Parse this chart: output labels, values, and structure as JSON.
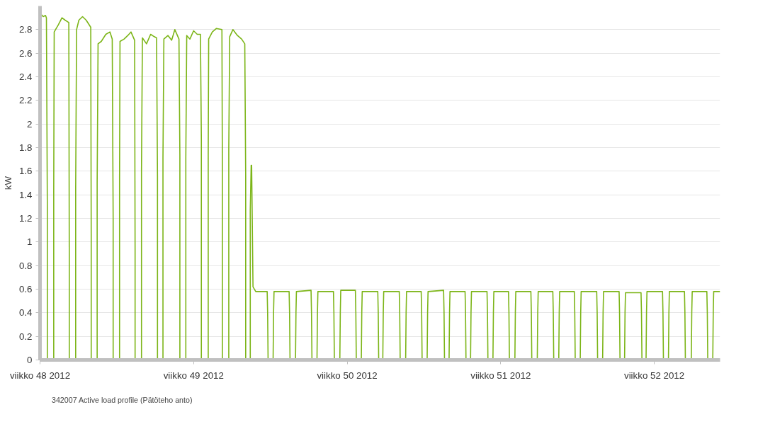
{
  "chart_data": {
    "type": "line",
    "ylabel": "kW",
    "xlim": [
      "2012-11-26",
      "2012-12-27"
    ],
    "ylim": [
      0,
      3
    ],
    "xticks": [
      {
        "value": "2012-11-26",
        "label": "viikko 48 2012"
      },
      {
        "value": "2012-12-03",
        "label": "viikko 49 2012"
      },
      {
        "value": "2012-12-10",
        "label": "viikko 50 2012"
      },
      {
        "value": "2012-12-17",
        "label": "viikko 51 2012"
      },
      {
        "value": "2012-12-24",
        "label": "viikko 52 2012"
      }
    ],
    "yticks": [
      0,
      0.2,
      0.4,
      0.6,
      0.8,
      1,
      1.2,
      1.4,
      1.6,
      1.8,
      2,
      2.2,
      2.4,
      2.6,
      2.8
    ],
    "grid": "y",
    "legend": "bottom left",
    "marker": "none",
    "line_style": "solid",
    "series": [
      {
        "name": "342007 Active load profile (Pätöteho anto)",
        "color": "#7cb518",
        "x": [
          "2012-11-26T01:00",
          "2012-11-26T03:30",
          "2012-11-26T06:00",
          "2012-11-26T07:00",
          "2012-11-26T08:00",
          "2012-11-26T08:00",
          "2012-11-26T15:00",
          "2012-11-26T15:00",
          "2012-11-26T15:30",
          "2012-11-26T20:00",
          "2012-11-27T00:00",
          "2012-11-27T03:30",
          "2012-11-27T07:30",
          "2012-11-27T08:00",
          "2012-11-27T08:00",
          "2012-11-27T15:00",
          "2012-11-27T15:00",
          "2012-11-27T16:00",
          "2012-11-27T18:30",
          "2012-11-27T22:30",
          "2012-11-28T02:30",
          "2012-11-28T07:30",
          "2012-11-28T08:00",
          "2012-11-28T08:00",
          "2012-11-28T14:30",
          "2012-11-28T14:30",
          "2012-11-28T15:30",
          "2012-11-28T19:00",
          "2012-11-29T00:00",
          "2012-11-29T04:30",
          "2012-11-29T07:00",
          "2012-11-29T08:00",
          "2012-11-29T08:00",
          "2012-11-29T15:00",
          "2012-11-29T15:00",
          "2012-11-29T15:30",
          "2012-11-29T20:00",
          "2012-11-30T00:00",
          "2012-11-30T03:30",
          "2012-11-30T07:30",
          "2012-11-30T08:00",
          "2012-11-30T08:00",
          "2012-11-30T15:00",
          "2012-11-30T15:00",
          "2012-11-30T16:00",
          "2012-11-30T20:30",
          "2012-12-01T01:00",
          "2012-12-01T05:00",
          "2012-12-01T07:30",
          "2012-12-01T08:30",
          "2012-12-01T08:30",
          "2012-12-01T14:30",
          "2012-12-01T14:30",
          "2012-12-01T15:30",
          "2012-12-01T20:00",
          "2012-12-02T00:00",
          "2012-12-02T03:30",
          "2012-12-02T08:00",
          "2012-12-02T09:00",
          "2012-12-02T09:00",
          "2012-12-02T15:30",
          "2012-12-02T15:30",
          "2012-12-02T16:30",
          "2012-12-02T20:00",
          "2012-12-03T00:00",
          "2012-12-03T04:00",
          "2012-12-03T07:30",
          "2012-12-03T08:30",
          "2012-12-03T08:30",
          "2012-12-03T16:00",
          "2012-12-03T16:00",
          "2012-12-03T16:30",
          "2012-12-03T20:30",
          "2012-12-04T01:00",
          "2012-12-04T07:00",
          "2012-12-04T07:30",
          "2012-12-04T07:30",
          "2012-12-04T14:30",
          "2012-12-04T14:30",
          "2012-12-04T15:30",
          "2012-12-04T19:00",
          "2012-12-05T00:00",
          "2012-12-05T04:30",
          "2012-12-05T08:00",
          "2012-12-05T09:00",
          "2012-12-05T09:00",
          "2012-12-05T14:00",
          "2012-12-05T14:00",
          "2012-12-05T15:00",
          "2012-12-05T15:30",
          "2012-12-05T17:00",
          "2012-12-05T20:00",
          "2012-12-06T08:30",
          "2012-12-06T09:00",
          "2012-12-06T09:30",
          "2012-12-06T15:00",
          "2012-12-06T15:30",
          "2012-12-06T16:00",
          "2012-12-07T08:30",
          "2012-12-07T09:00",
          "2012-12-07T09:30",
          "2012-12-07T15:30",
          "2012-12-07T16:00",
          "2012-12-07T16:30",
          "2012-12-08T08:30",
          "2012-12-08T09:00",
          "2012-12-08T09:30",
          "2012-12-08T15:00",
          "2012-12-08T15:30",
          "2012-12-08T16:00",
          "2012-12-09T09:00",
          "2012-12-09T09:30",
          "2012-12-09T10:00",
          "2012-12-09T16:00",
          "2012-12-09T16:30",
          "2012-12-09T17:00",
          "2012-12-10T09:00",
          "2012-12-10T09:30",
          "2012-12-10T10:00",
          "2012-12-10T15:30",
          "2012-12-10T16:00",
          "2012-12-10T16:30",
          "2012-12-11T09:30",
          "2012-12-11T10:00",
          "2012-12-11T10:30",
          "2012-12-11T15:00",
          "2012-12-11T15:30",
          "2012-12-11T16:00",
          "2012-12-12T09:00",
          "2012-12-12T09:30",
          "2012-12-12T10:00",
          "2012-12-12T16:00",
          "2012-12-12T16:30",
          "2012-12-12T17:00",
          "2012-12-13T09:00",
          "2012-12-13T09:30",
          "2012-12-13T10:00",
          "2012-12-13T15:30",
          "2012-12-13T16:00",
          "2012-12-13T16:30",
          "2012-12-14T09:30",
          "2012-12-14T10:00",
          "2012-12-14T10:30",
          "2012-12-14T15:30",
          "2012-12-14T16:00",
          "2012-12-14T16:30",
          "2012-12-15T09:00",
          "2012-12-15T09:30",
          "2012-12-15T10:00",
          "2012-12-15T15:00",
          "2012-12-15T15:30",
          "2012-12-15T16:00",
          "2012-12-16T09:00",
          "2012-12-16T09:30",
          "2012-12-16T10:00",
          "2012-12-16T15:30",
          "2012-12-16T16:00",
          "2012-12-16T16:30",
          "2012-12-17T08:30",
          "2012-12-17T09:00",
          "2012-12-17T09:30",
          "2012-12-17T15:30",
          "2012-12-17T16:00",
          "2012-12-17T16:30",
          "2012-12-18T09:00",
          "2012-12-18T09:30",
          "2012-12-18T10:00",
          "2012-12-18T16:00",
          "2012-12-18T16:30",
          "2012-12-18T17:00",
          "2012-12-19T09:00",
          "2012-12-19T09:30",
          "2012-12-19T10:00",
          "2012-12-19T15:30",
          "2012-12-19T16:00",
          "2012-12-19T16:30",
          "2012-12-20T08:30",
          "2012-12-20T09:00",
          "2012-12-20T09:30",
          "2012-12-20T15:00",
          "2012-12-20T15:30",
          "2012-12-20T16:00",
          "2012-12-21T09:00",
          "2012-12-21T09:30",
          "2012-12-21T10:00",
          "2012-12-21T15:30",
          "2012-12-21T16:00",
          "2012-12-21T16:30",
          "2012-12-22T09:30",
          "2012-12-22T10:00",
          "2012-12-22T10:30",
          "2012-12-22T15:30",
          "2012-12-22T16:00",
          "2012-12-22T16:30",
          "2012-12-23T09:30",
          "2012-12-23T10:00",
          "2012-12-23T10:30",
          "2012-12-23T15:00",
          "2012-12-23T15:30",
          "2012-12-23T16:00",
          "2012-12-24T09:00",
          "2012-12-24T09:30",
          "2012-12-24T10:00",
          "2012-12-24T15:30",
          "2012-12-24T16:00",
          "2012-12-24T16:30",
          "2012-12-25T09:00",
          "2012-12-25T09:30",
          "2012-12-25T10:00",
          "2012-12-25T16:30",
          "2012-12-25T17:00",
          "2012-12-25T17:30",
          "2012-12-26T09:30",
          "2012-12-26T10:00",
          "2012-12-26T10:30",
          "2012-12-26T16:00",
          "2012-12-26T16:30",
          "2012-12-26T17:00",
          "2012-12-27T00:00"
        ],
        "values": [
          2.93,
          2.91,
          2.92,
          2.9,
          1.3,
          0,
          0,
          1.42,
          2.78,
          2.84,
          2.9,
          2.88,
          2.86,
          0.9,
          0,
          0,
          1.46,
          2.8,
          2.88,
          2.91,
          2.88,
          2.82,
          1.07,
          0,
          0,
          1.5,
          2.68,
          2.7,
          2.76,
          2.78,
          2.72,
          1.2,
          0,
          0,
          1.54,
          2.7,
          2.72,
          2.75,
          2.78,
          2.71,
          0.94,
          0,
          0,
          1.6,
          2.73,
          2.68,
          2.76,
          2.74,
          2.73,
          1.56,
          0,
          0,
          1.71,
          2.72,
          2.75,
          2.71,
          2.8,
          2.72,
          1.74,
          0,
          0,
          1.71,
          2.75,
          2.72,
          2.79,
          2.76,
          2.76,
          1.87,
          0,
          0,
          1.73,
          2.72,
          2.78,
          2.81,
          2.8,
          1.6,
          0,
          0,
          1.79,
          2.74,
          2.8,
          2.75,
          2.72,
          2.68,
          1.56,
          0,
          0,
          1.27,
          1.65,
          1.65,
          0.62,
          0.58,
          0.58,
          0.4,
          0,
          0,
          0.4,
          0.58,
          0.58,
          0.4,
          0,
          0,
          0.4,
          0.58,
          0.59,
          0.4,
          0,
          0,
          0.4,
          0.58,
          0.58,
          0.4,
          0,
          0,
          0.4,
          0.59,
          0.59,
          0.4,
          0,
          0,
          0.4,
          0.58,
          0.58,
          0.4,
          0,
          0,
          0.4,
          0.58,
          0.58,
          0.4,
          0,
          0,
          0.4,
          0.58,
          0.58,
          0.4,
          0,
          0,
          0.4,
          0.58,
          0.59,
          0.4,
          0,
          0,
          0.4,
          0.58,
          0.58,
          0.4,
          0,
          0,
          0.4,
          0.58,
          0.58,
          0.4,
          0,
          0,
          0.4,
          0.58,
          0.58,
          0.4,
          0,
          0,
          0.4,
          0.58,
          0.58,
          0.4,
          0,
          0,
          0.4,
          0.58,
          0.58,
          0.4,
          0,
          0,
          0.4,
          0.58,
          0.58,
          0.4,
          0,
          0,
          0.4,
          0.58,
          0.58,
          0.4,
          0,
          0,
          0.4,
          0.58,
          0.58,
          0.4,
          0,
          0,
          0.4,
          0.57,
          0.57,
          0.4,
          0,
          0,
          0.4,
          0.58,
          0.58,
          0.4,
          0,
          0,
          0.4,
          0.58,
          0.58,
          0.4,
          0,
          0,
          0.4,
          0.58,
          0.58,
          0.4,
          0,
          0,
          0.4,
          0.58,
          0.58
        ]
      }
    ]
  }
}
